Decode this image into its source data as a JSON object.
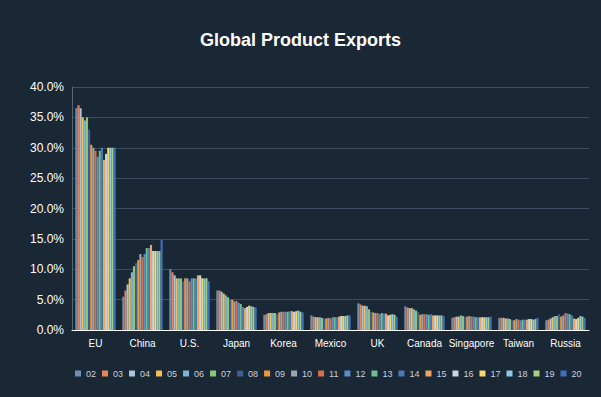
{
  "chart_data": {
    "type": "bar",
    "title": "Global Product Exports",
    "categories": [
      "EU",
      "China",
      "U.S.",
      "Japan",
      "Korea",
      "Mexico",
      "UK",
      "Canada",
      "Singapore",
      "Taiwan",
      "Russia"
    ],
    "series": [
      {
        "name": "02",
        "color": "#6f8fb0",
        "values": [
          36.5,
          5.5,
          10.0,
          6.5,
          2.5,
          2.4,
          4.4,
          3.9,
          2.0,
          2.0,
          1.6
        ]
      },
      {
        "name": "03",
        "color": "#e8845c",
        "values": [
          37.0,
          6.5,
          9.5,
          6.5,
          2.6,
          2.2,
          4.2,
          3.7,
          2.1,
          2.0,
          1.7
        ]
      },
      {
        "name": "04",
        "color": "#a9c4dc",
        "values": [
          36.5,
          7.5,
          9.0,
          6.3,
          2.8,
          2.1,
          4.0,
          3.6,
          2.2,
          2.0,
          1.9
        ]
      },
      {
        "name": "05",
        "color": "#f2c14e",
        "values": [
          35.0,
          8.5,
          8.5,
          6.0,
          2.8,
          2.1,
          4.0,
          3.6,
          2.2,
          1.9,
          2.1
        ]
      },
      {
        "name": "06",
        "color": "#7fb3d5",
        "values": [
          34.5,
          9.5,
          8.5,
          5.7,
          2.8,
          2.1,
          3.9,
          3.4,
          2.4,
          1.9,
          2.3
        ]
      },
      {
        "name": "07",
        "color": "#8cc47a",
        "values": [
          35.0,
          10.5,
          8.5,
          5.4,
          2.8,
          2.0,
          3.4,
          3.2,
          2.3,
          1.8,
          2.3
        ]
      },
      {
        "name": "08",
        "color": "#3f5f8f",
        "values": [
          33.0,
          11.0,
          8.0,
          5.1,
          2.6,
          1.9,
          3.0,
          3.0,
          2.2,
          1.6,
          2.6
        ]
      },
      {
        "name": "09",
        "color": "#e99a3f",
        "values": [
          30.5,
          11.5,
          8.5,
          5.0,
          2.9,
          1.9,
          2.9,
          2.5,
          2.2,
          1.6,
          2.2
        ]
      },
      {
        "name": "10",
        "color": "#9aa5b1",
        "values": [
          30.0,
          12.5,
          8.5,
          4.7,
          3.0,
          2.0,
          2.8,
          2.6,
          2.3,
          1.8,
          2.4
        ]
      },
      {
        "name": "11",
        "color": "#d9704a",
        "values": [
          29.5,
          12.0,
          8.0,
          4.8,
          3.0,
          1.9,
          2.8,
          2.6,
          2.2,
          1.7,
          2.8
        ]
      },
      {
        "name": "12",
        "color": "#5b8ec9",
        "values": [
          28.5,
          12.5,
          8.5,
          4.5,
          3.0,
          2.1,
          2.6,
          2.6,
          2.2,
          1.6,
          2.7
        ]
      },
      {
        "name": "13",
        "color": "#6dbf8f",
        "values": [
          29.5,
          13.5,
          8.5,
          4.3,
          3.0,
          2.1,
          2.8,
          2.5,
          2.1,
          1.7,
          2.6
        ]
      },
      {
        "name": "14",
        "color": "#4a7ab8",
        "values": [
          30.0,
          13.5,
          8.5,
          3.8,
          3.1,
          2.1,
          2.7,
          2.6,
          2.1,
          1.7,
          2.4
        ]
      },
      {
        "name": "15",
        "color": "#f0a35e",
        "values": [
          28.0,
          14.0,
          9.0,
          3.6,
          3.1,
          2.2,
          2.7,
          2.4,
          2.1,
          1.7,
          1.9
        ]
      },
      {
        "name": "16",
        "color": "#c9d6e3",
        "values": [
          29.0,
          13.0,
          9.0,
          3.8,
          3.0,
          2.3,
          2.4,
          2.4,
          2.1,
          1.8,
          1.8
        ]
      },
      {
        "name": "17",
        "color": "#f5d76e",
        "values": [
          30.0,
          13.0,
          8.5,
          4.0,
          3.1,
          2.3,
          2.5,
          2.4,
          2.1,
          1.8,
          2.0
        ]
      },
      {
        "name": "18",
        "color": "#8fc9e8",
        "values": [
          30.0,
          13.0,
          8.5,
          3.9,
          3.2,
          2.3,
          2.6,
          2.4,
          2.1,
          1.7,
          2.3
        ]
      },
      {
        "name": "19",
        "color": "#a3d17c",
        "values": [
          30.0,
          13.0,
          8.5,
          3.8,
          3.0,
          2.4,
          2.5,
          2.4,
          2.1,
          1.8,
          2.2
        ]
      },
      {
        "name": "20",
        "color": "#3d6fc2",
        "values": [
          30.0,
          14.8,
          8.0,
          3.7,
          2.9,
          2.4,
          2.2,
          2.3,
          2.2,
          2.0,
          2.0
        ]
      }
    ],
    "ylim": [
      0,
      40
    ],
    "yticks": [
      {
        "value": 0,
        "label": "0.0%"
      },
      {
        "value": 5,
        "label": "5.0%"
      },
      {
        "value": 10,
        "label": "10.0%"
      },
      {
        "value": 15,
        "label": "15.0%"
      },
      {
        "value": 20,
        "label": "20.0%"
      },
      {
        "value": 25,
        "label": "25.0%"
      },
      {
        "value": 30,
        "label": "30.0%"
      },
      {
        "value": 35,
        "label": "35.0%"
      },
      {
        "value": 40,
        "label": "40.0%"
      }
    ],
    "grid": true,
    "legend": "bottom"
  }
}
